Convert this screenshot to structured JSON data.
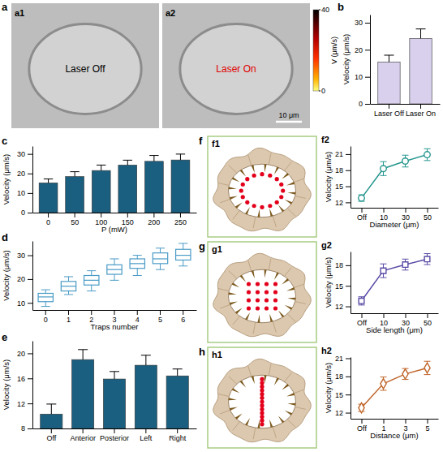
{
  "panel_labels": [
    "a",
    "a1",
    "a2",
    "b",
    "c",
    "d",
    "e",
    "f",
    "f1",
    "f2",
    "g",
    "g1",
    "g2",
    "h",
    "h1",
    "h2"
  ],
  "images": [
    {
      "label": "Laser Off",
      "color": "#000000"
    },
    {
      "label": "Laser On",
      "color": "#e00000",
      "colorbar": {
        "range": [
          0,
          40
        ],
        "ticks": [
          0,
          40
        ],
        "title": "V (μm/s)"
      },
      "scale_bar": "10 μm"
    }
  ],
  "chart_data": [
    {
      "type": "bar",
      "y_label": "Velocity (μm/s)",
      "categories": [
        "Laser Off",
        "Laser On"
      ],
      "values": [
        15.5,
        24.2
      ],
      "errors": [
        2.5,
        3.5
      ],
      "color": "#d8d0ec",
      "ylim": [
        0,
        33
      ],
      "yticks": [
        0,
        10,
        20,
        30
      ]
    },
    {
      "type": "bar",
      "x_label": "P (mW)",
      "y_label": "Velocity (μm/s)",
      "categories": [
        "0",
        "50",
        "100",
        "150",
        "200",
        "250"
      ],
      "values": [
        15.2,
        18.4,
        21.5,
        24.3,
        26.2,
        26.9
      ],
      "errors": [
        2.0,
        2.5,
        2.8,
        2.5,
        3.0,
        3.0
      ],
      "color": "#1a5f80",
      "ylim": [
        0,
        34
      ],
      "yticks": [
        0,
        10,
        20,
        30
      ]
    },
    {
      "type": "box",
      "x_label": "Traps number",
      "y_label": "Velocity (μm/s)",
      "categories": [
        "0",
        "1",
        "2",
        "3",
        "4",
        "5",
        "6"
      ],
      "boxes": {
        "min": [
          8.5,
          13.5,
          15,
          19.5,
          21.5,
          24,
          25.5
        ],
        "q1": [
          10.5,
          15,
          17.5,
          22,
          24.5,
          26.5,
          28
        ],
        "median": [
          12.5,
          17,
          19.5,
          24,
          26.5,
          28.5,
          30
        ],
        "q3": [
          14,
          19,
          21.5,
          26,
          28.5,
          31,
          32.5
        ],
        "max": [
          15.5,
          21,
          23.5,
          28.5,
          30,
          33,
          35
        ]
      },
      "color": "#4a9bc6",
      "ylim": [
        7,
        36
      ],
      "yticks": [
        10,
        20,
        30
      ]
    },
    {
      "type": "bar",
      "y_label": "Velocity (μm/s)",
      "categories": [
        "Off",
        "Anterior",
        "Posterior",
        "Left",
        "Right"
      ],
      "values": [
        10.3,
        19.0,
        15.9,
        18.1,
        16.4
      ],
      "errors": [
        1.6,
        1.6,
        1.2,
        1.6,
        1.1
      ],
      "color": "#1a5f80",
      "ylim": [
        8,
        22
      ],
      "yticks": [
        8,
        12,
        16,
        20
      ]
    },
    {
      "type": "line",
      "x_label": "Diameter (μm)",
      "y_label": "Velocity (μm/s)",
      "categories": [
        "Off",
        "10",
        "30",
        "50"
      ],
      "values": [
        12.8,
        18.3,
        19.7,
        20.9
      ],
      "errors": [
        0.6,
        1.3,
        1.1,
        1.1
      ],
      "color": "#27968f",
      "marker": "circle",
      "ylim": [
        11,
        22.5
      ],
      "yticks": [
        12,
        15,
        18,
        21
      ]
    },
    {
      "type": "line",
      "x_label": "Side length (μm)",
      "y_label": "Velocity (μm/s)",
      "categories": [
        "Off",
        "10",
        "30",
        "50"
      ],
      "values": [
        12.8,
        17.2,
        18.1,
        18.9
      ],
      "errors": [
        0.6,
        1.0,
        0.8,
        0.8
      ],
      "color": "#5a4aa6",
      "marker": "square",
      "ylim": [
        11,
        20
      ],
      "yticks": [
        12,
        15,
        18
      ]
    },
    {
      "type": "line",
      "x_label": "Distance (μm)",
      "y_label": "Velocity (μm/s)",
      "categories": [
        "Off",
        "1",
        "3",
        "5"
      ],
      "values": [
        12.8,
        16.8,
        18.4,
        19.4
      ],
      "errors": [
        0.6,
        1.1,
        0.9,
        1.1
      ],
      "color": "#c0652a",
      "marker": "diamond",
      "ylim": [
        11,
        21.2
      ],
      "yticks": [
        12,
        15,
        18,
        21
      ]
    }
  ]
}
